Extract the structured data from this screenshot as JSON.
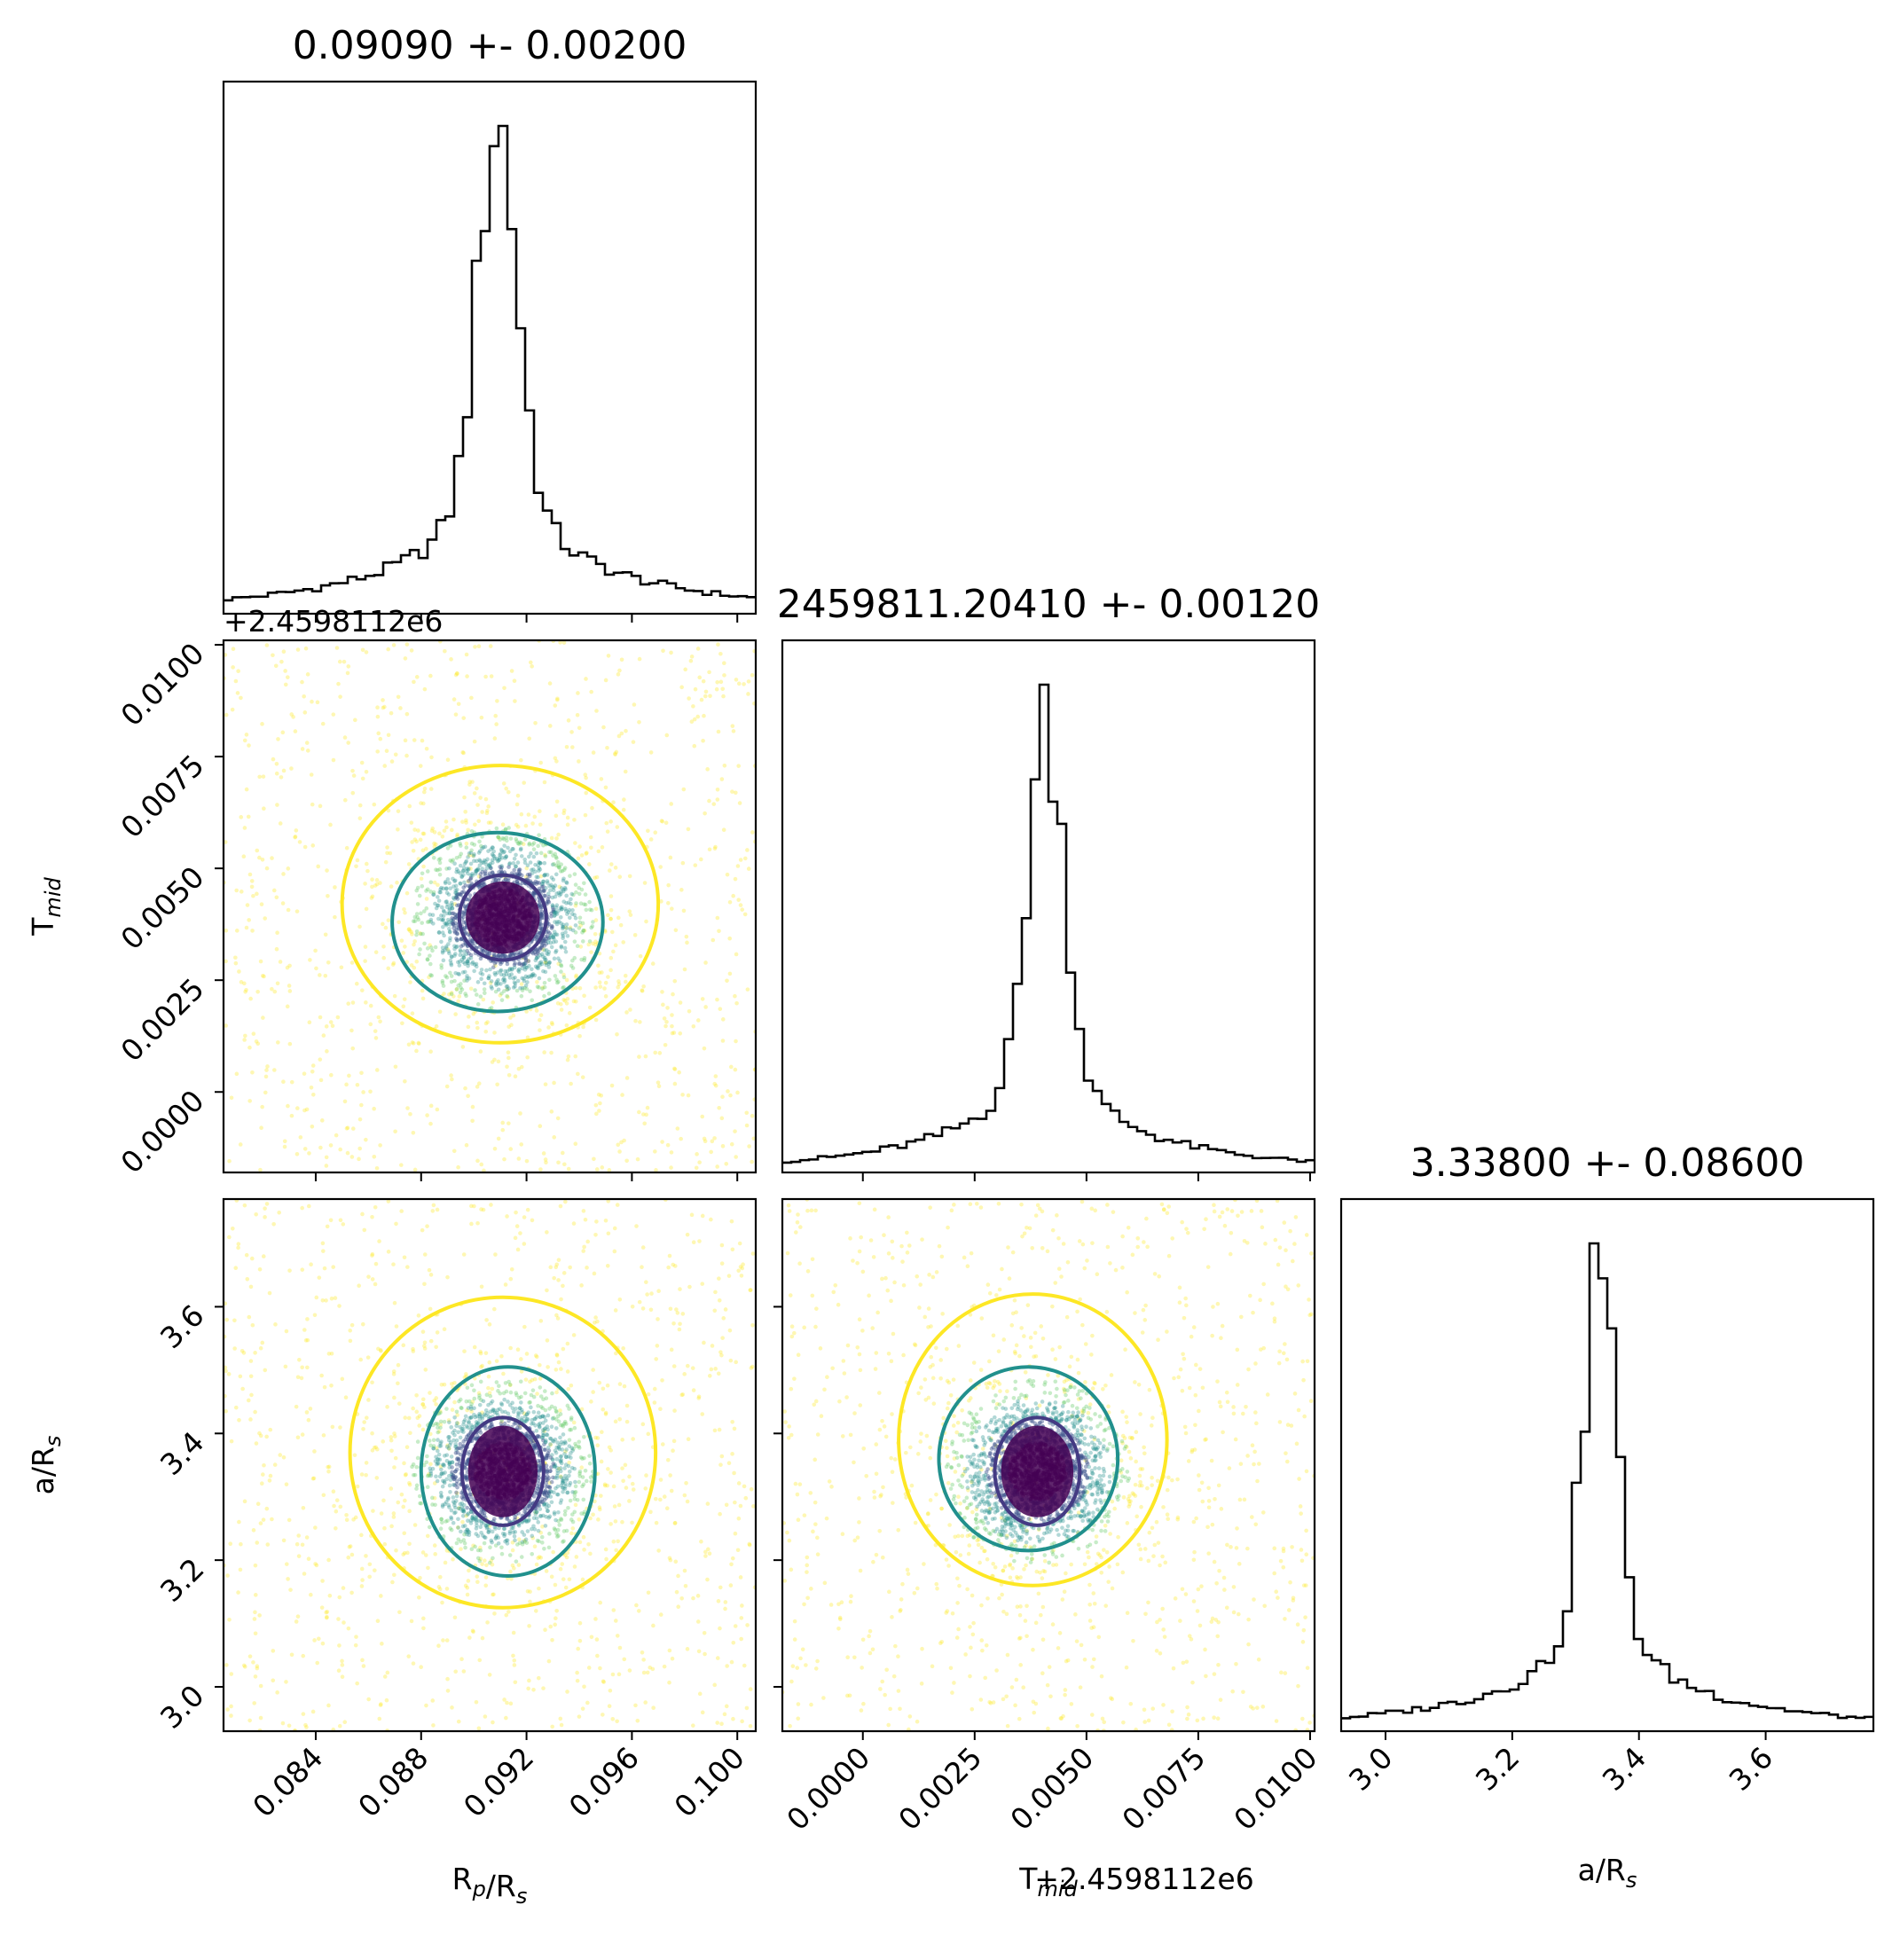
{
  "chart_data": {
    "type": "corner",
    "parameters": [
      {
        "key": "rp",
        "label_main": "R",
        "label_sub1": "p",
        "label_mid": "/R",
        "label_sub2": "s",
        "title": "0.09090 +- 0.00200",
        "range": [
          0.0805,
          0.1007
        ],
        "ticks": [
          "0.084",
          "0.088",
          "0.092",
          "0.096",
          "0.100"
        ],
        "median": 0.0909,
        "hist_core_sigma": 0.00075,
        "hist_tail_scale": 0.006
      },
      {
        "key": "tmid",
        "label_main": "T",
        "label_sub1": "mid",
        "label_mid": "",
        "label_sub2": "",
        "title": "2459811.20410 +- 0.00120",
        "offset": "+2.4598112e6",
        "range": [
          -0.0018,
          0.0101
        ],
        "ticks": [
          "0.0000",
          "0.0025",
          "0.0050",
          "0.0075",
          "0.0100"
        ],
        "median": 0.0041,
        "hist_core_sigma": 0.0004,
        "hist_tail_scale": 0.003
      },
      {
        "key": "ars",
        "label_main": "a/R",
        "label_sub1": "",
        "label_mid": "",
        "label_sub2": "s",
        "title": "3.33800 +- 0.08600",
        "range": [
          2.93,
          3.77
        ],
        "ticks": [
          "3.0",
          "3.2",
          "3.4",
          "3.6"
        ],
        "median": 3.338,
        "hist_core_sigma": 0.025,
        "hist_tail_scale": 0.25
      }
    ],
    "contours": {
      "rp_tmid": {
        "inner": {
          "center": [
            0.0911,
            0.0039
          ],
          "radius": [
            0.00165,
            0.00095
          ]
        },
        "middle": {
          "center": [
            0.0909,
            0.0038
          ],
          "radius": [
            0.004,
            0.002
          ]
        },
        "outer": {
          "center": [
            0.091,
            0.0042
          ],
          "radius": [
            0.006,
            0.0031
          ]
        }
      },
      "rp_ars": {
        "inner": {
          "center": [
            0.0911,
            3.34
          ],
          "radius": [
            0.00155,
            0.085
          ]
        },
        "middle": {
          "center": [
            0.0913,
            3.34
          ],
          "radius": [
            0.0033,
            0.165
          ]
        },
        "outer": {
          "center": [
            0.0911,
            3.37
          ],
          "radius": [
            0.0058,
            0.245
          ]
        }
      },
      "tmid_ars": {
        "inner": {
          "center": [
            0.0039,
            3.34
          ],
          "radius": [
            0.00095,
            0.085
          ]
        },
        "middle": {
          "center": [
            0.0037,
            3.36
          ],
          "radius": [
            0.002,
            0.145
          ]
        },
        "outer": {
          "center": [
            0.0038,
            3.39
          ],
          "radius": [
            0.003,
            0.23
          ]
        }
      }
    },
    "contour_colors": {
      "inner": "#443a83",
      "middle": "#21908d",
      "outer": "#fde725"
    },
    "point_colors": [
      "#440154",
      "#3b528b",
      "#21908d",
      "#5ec962",
      "#fde725"
    ],
    "grid": false,
    "legend": "none"
  }
}
